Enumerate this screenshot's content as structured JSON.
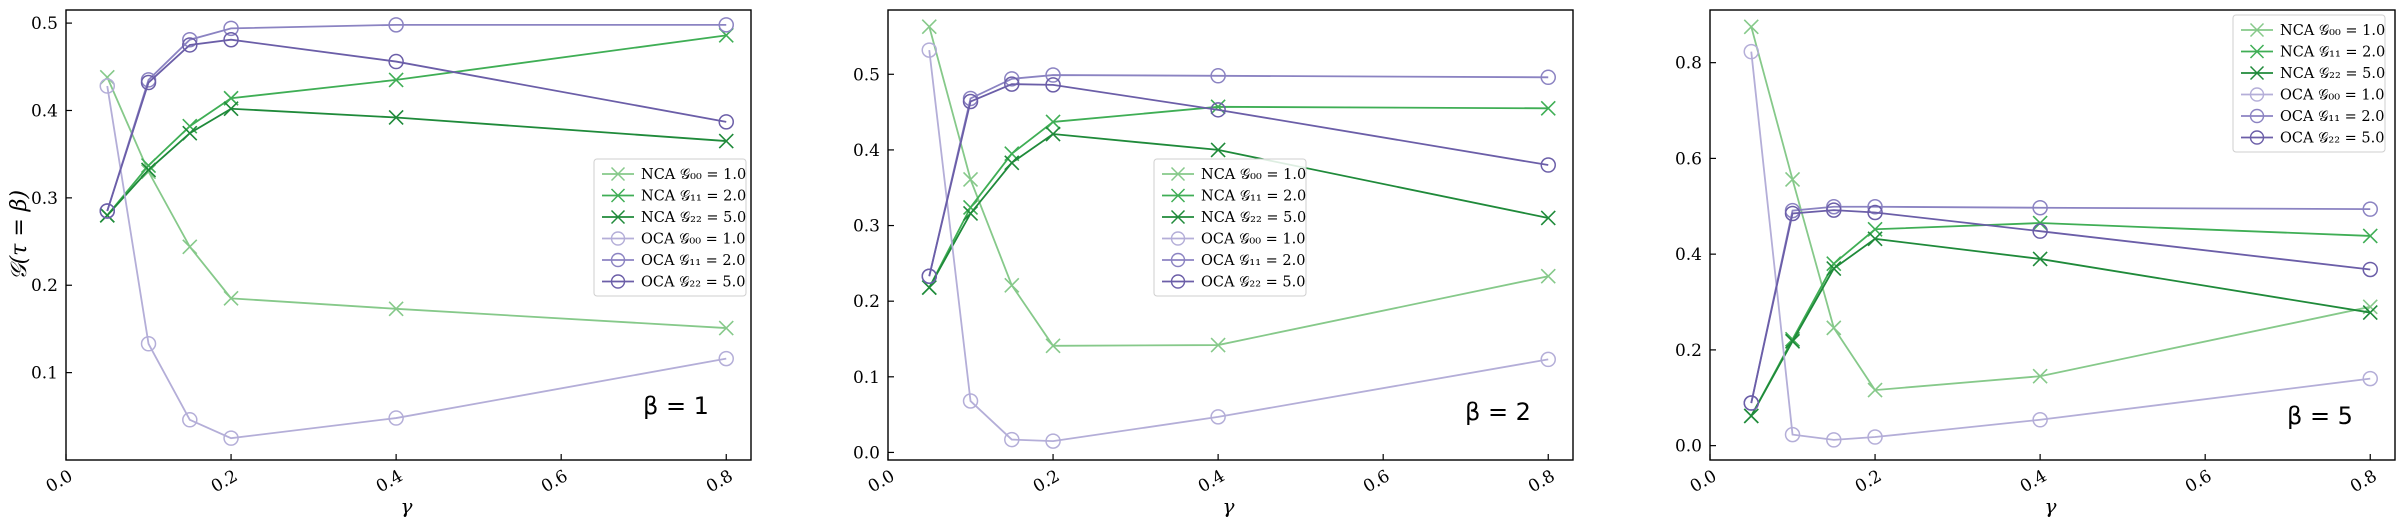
{
  "colors": {
    "nca": [
      "#86c98a",
      "#3fae55",
      "#1f8a3a"
    ],
    "oca": [
      "#b4aed8",
      "#8b83c2",
      "#6b5ea8"
    ]
  },
  "chart_data": [
    {
      "type": "line",
      "xlabel": "γ",
      "ylabel": "𝒢(τ = β)",
      "annotation": "β = 1",
      "xlim": [
        0.0,
        0.83
      ],
      "ylim": [
        0.0,
        0.515
      ],
      "xticks": [
        "0.0",
        "0.2",
        "0.4",
        "0.6",
        "0.8"
      ],
      "yticks": [
        "0.1",
        "0.2",
        "0.3",
        "0.4",
        "0.5"
      ],
      "legend": "center-right",
      "x": [
        0.05,
        0.1,
        0.15,
        0.2,
        0.4,
        0.8
      ],
      "series": [
        {
          "name": "NCA 𝒢₀₀ = 1.0",
          "marker": "x",
          "values": [
            0.438,
            0.33,
            0.244,
            0.185,
            0.173,
            0.151
          ]
        },
        {
          "name": "NCA 𝒢₁₁ = 2.0",
          "marker": "x",
          "values": [
            0.28,
            0.337,
            0.382,
            0.414,
            0.435,
            0.486
          ]
        },
        {
          "name": "NCA 𝒢₂₂ = 5.0",
          "marker": "x",
          "values": [
            0.28,
            0.332,
            0.374,
            0.402,
            0.392,
            0.365
          ]
        },
        {
          "name": "OCA 𝒢₀₀ = 1.0",
          "marker": "o",
          "values": [
            0.428,
            0.133,
            0.046,
            0.025,
            0.048,
            0.116
          ]
        },
        {
          "name": "OCA 𝒢₁₁ = 2.0",
          "marker": "o",
          "values": [
            0.285,
            0.435,
            0.481,
            0.494,
            0.498,
            0.498
          ]
        },
        {
          "name": "OCA 𝒢₂₂ = 5.0",
          "marker": "o",
          "values": [
            0.285,
            0.432,
            0.475,
            0.481,
            0.456,
            0.387
          ]
        }
      ]
    },
    {
      "type": "line",
      "xlabel": "γ",
      "ylabel": "",
      "annotation": "β = 2",
      "xlim": [
        0.0,
        0.83
      ],
      "ylim": [
        -0.01,
        0.585
      ],
      "xticks": [
        "0.0",
        "0.2",
        "0.4",
        "0.6",
        "0.8"
      ],
      "yticks": [
        "0.0",
        "0.1",
        "0.2",
        "0.3",
        "0.4",
        "0.5"
      ],
      "legend": "center",
      "x": [
        0.05,
        0.1,
        0.15,
        0.2,
        0.4,
        0.8
      ],
      "series": [
        {
          "name": "NCA 𝒢₀₀ = 1.0",
          "marker": "x",
          "values": [
            0.563,
            0.361,
            0.221,
            0.141,
            0.142,
            0.233
          ]
        },
        {
          "name": "NCA 𝒢₁₁ = 2.0",
          "marker": "x",
          "values": [
            0.218,
            0.324,
            0.395,
            0.437,
            0.457,
            0.455
          ]
        },
        {
          "name": "NCA 𝒢₂₂ = 5.0",
          "marker": "x",
          "values": [
            0.218,
            0.316,
            0.383,
            0.421,
            0.4,
            0.31
          ]
        },
        {
          "name": "OCA 𝒢₀₀ = 1.0",
          "marker": "o",
          "values": [
            0.532,
            0.068,
            0.017,
            0.015,
            0.047,
            0.123
          ]
        },
        {
          "name": "OCA 𝒢₁₁ = 2.0",
          "marker": "o",
          "values": [
            0.233,
            0.468,
            0.494,
            0.499,
            0.498,
            0.496
          ]
        },
        {
          "name": "OCA 𝒢₂₂ = 5.0",
          "marker": "o",
          "values": [
            0.233,
            0.464,
            0.487,
            0.486,
            0.453,
            0.38
          ]
        }
      ]
    },
    {
      "type": "line",
      "xlabel": "γ",
      "ylabel": "",
      "annotation": "β = 5",
      "xlim": [
        0.0,
        0.83
      ],
      "ylim": [
        -0.03,
        0.91
      ],
      "xticks": [
        "0.0",
        "0.2",
        "0.4",
        "0.6",
        "0.8"
      ],
      "yticks": [
        "0.0",
        "0.2",
        "0.4",
        "0.6",
        "0.8"
      ],
      "legend": "top-right",
      "x": [
        0.05,
        0.1,
        0.15,
        0.2,
        0.4,
        0.8
      ],
      "series": [
        {
          "name": "NCA 𝒢₀₀ = 1.0",
          "marker": "x",
          "values": [
            0.875,
            0.556,
            0.246,
            0.116,
            0.145,
            0.29
          ]
        },
        {
          "name": "NCA 𝒢₁₁ = 2.0",
          "marker": "x",
          "values": [
            0.062,
            0.222,
            0.38,
            0.452,
            0.465,
            0.438
          ]
        },
        {
          "name": "NCA 𝒢₂₂ = 5.0",
          "marker": "x",
          "values": [
            0.062,
            0.218,
            0.37,
            0.432,
            0.39,
            0.278
          ]
        },
        {
          "name": "OCA 𝒢₀₀ = 1.0",
          "marker": "o",
          "values": [
            0.823,
            0.023,
            0.012,
            0.018,
            0.054,
            0.14
          ]
        },
        {
          "name": "OCA 𝒢₁₁ = 2.0",
          "marker": "o",
          "values": [
            0.089,
            0.491,
            0.499,
            0.499,
            0.497,
            0.494
          ]
        },
        {
          "name": "OCA 𝒢₂₂ = 5.0",
          "marker": "o",
          "values": [
            0.089,
            0.485,
            0.492,
            0.487,
            0.448,
            0.368
          ]
        }
      ]
    }
  ]
}
